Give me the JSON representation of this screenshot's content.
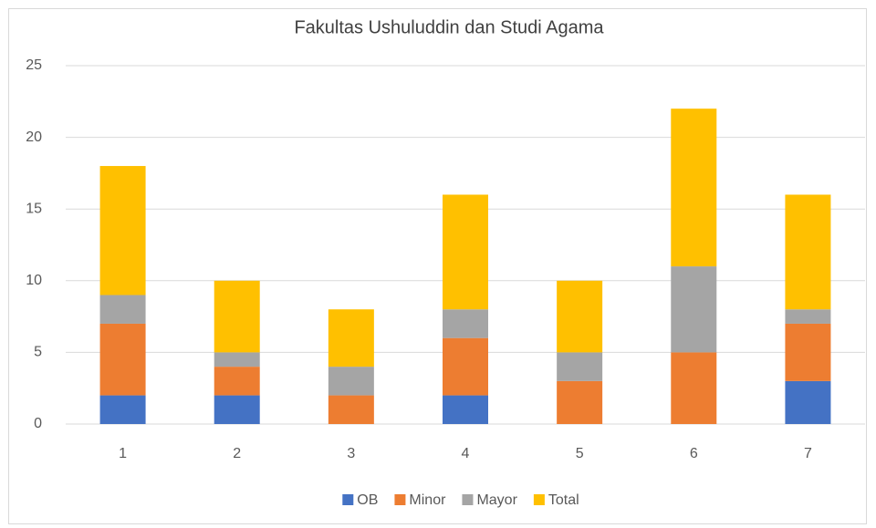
{
  "chart_data": {
    "type": "stacked_bar",
    "title": "Fakultas Ushuluddin dan Studi Agama",
    "categories": [
      "1",
      "2",
      "3",
      "4",
      "5",
      "6",
      "7"
    ],
    "series": [
      {
        "name": "OB",
        "color": "#4472c4",
        "values": [
          2,
          2,
          0,
          2,
          0,
          0,
          3
        ]
      },
      {
        "name": "Minor",
        "color": "#ed7d31",
        "values": [
          5,
          2,
          2,
          4,
          3,
          5,
          4
        ]
      },
      {
        "name": "Mayor",
        "color": "#a5a5a5",
        "values": [
          2,
          1,
          2,
          2,
          2,
          6,
          1
        ]
      },
      {
        "name": "Total",
        "color": "#ffc000",
        "values": [
          9,
          5,
          4,
          8,
          5,
          11,
          8
        ]
      }
    ],
    "ylim": [
      0,
      25
    ],
    "yticks": [
      0,
      5,
      10,
      15,
      20,
      25
    ],
    "grid": true,
    "legend": "bottom"
  }
}
